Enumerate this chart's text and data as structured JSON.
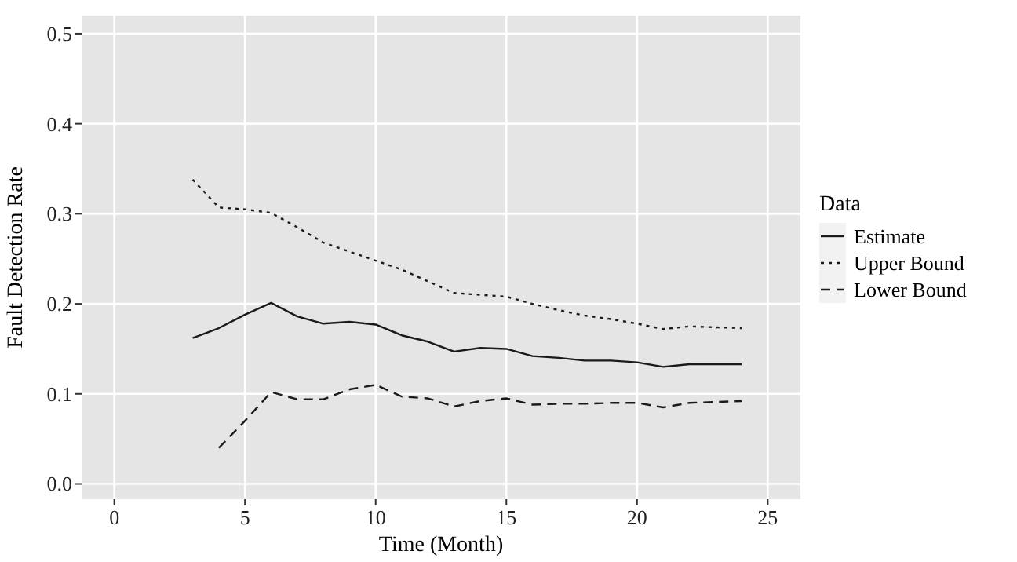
{
  "chart_data": {
    "type": "line",
    "xlabel": "Time  (Month)",
    "ylabel": "Fault Detection Rate",
    "legend_title": "Data",
    "legend": "right",
    "grid": true,
    "xlim": [
      -1.25,
      26.25
    ],
    "xticks": [
      0,
      5,
      10,
      15,
      20,
      25
    ],
    "ylim": [
      -0.017,
      0.52
    ],
    "yticks": [
      {
        "value": 0,
        "label": "0.0"
      },
      {
        "value": 0.1,
        "label": "0.1"
      },
      {
        "value": 0.2,
        "label": "0.2"
      },
      {
        "value": 0.3,
        "label": "0.3"
      },
      {
        "value": 0.4,
        "label": "0.4"
      },
      {
        "value": 0.5,
        "label": "0.5"
      }
    ],
    "series": [
      {
        "name": "Estimate",
        "color": "#1a1a1a",
        "line_style": "solid",
        "x": [
          3,
          4,
          5,
          6,
          7,
          8,
          9,
          10,
          11,
          12,
          13,
          14,
          15,
          16,
          17,
          18,
          19,
          20,
          21,
          22,
          23,
          24
        ],
        "values": [
          0.162,
          0.173,
          0.188,
          0.201,
          0.186,
          0.178,
          0.18,
          0.177,
          0.165,
          0.158,
          0.147,
          0.151,
          0.15,
          0.142,
          0.14,
          0.137,
          0.137,
          0.135,
          0.13,
          0.133,
          0.133,
          0.133
        ]
      },
      {
        "name": "Upper Bound",
        "color": "#1a1a1a",
        "line_style": "dotted",
        "x": [
          3,
          4,
          5,
          6,
          7,
          8,
          9,
          10,
          11,
          12,
          13,
          14,
          15,
          16,
          17,
          18,
          19,
          20,
          21,
          22,
          23,
          24
        ],
        "values": [
          0.338,
          0.307,
          0.305,
          0.301,
          0.285,
          0.268,
          0.258,
          0.248,
          0.238,
          0.225,
          0.212,
          0.21,
          0.208,
          0.2,
          0.193,
          0.187,
          0.183,
          0.178,
          0.172,
          0.175,
          0.174,
          0.173
        ]
      },
      {
        "name": "Lower Bound",
        "color": "#1a1a1a",
        "line_style": "dashed",
        "x": [
          4,
          5,
          6,
          7,
          8,
          9,
          10,
          11,
          12,
          13,
          14,
          15,
          16,
          17,
          18,
          19,
          20,
          21,
          22,
          23,
          24
        ],
        "values": [
          0.04,
          0.07,
          0.102,
          0.094,
          0.094,
          0.105,
          0.11,
          0.097,
          0.095,
          0.086,
          0.092,
          0.095,
          0.088,
          0.089,
          0.089,
          0.09,
          0.09,
          0.085,
          0.09,
          0.091,
          0.092
        ]
      }
    ]
  }
}
